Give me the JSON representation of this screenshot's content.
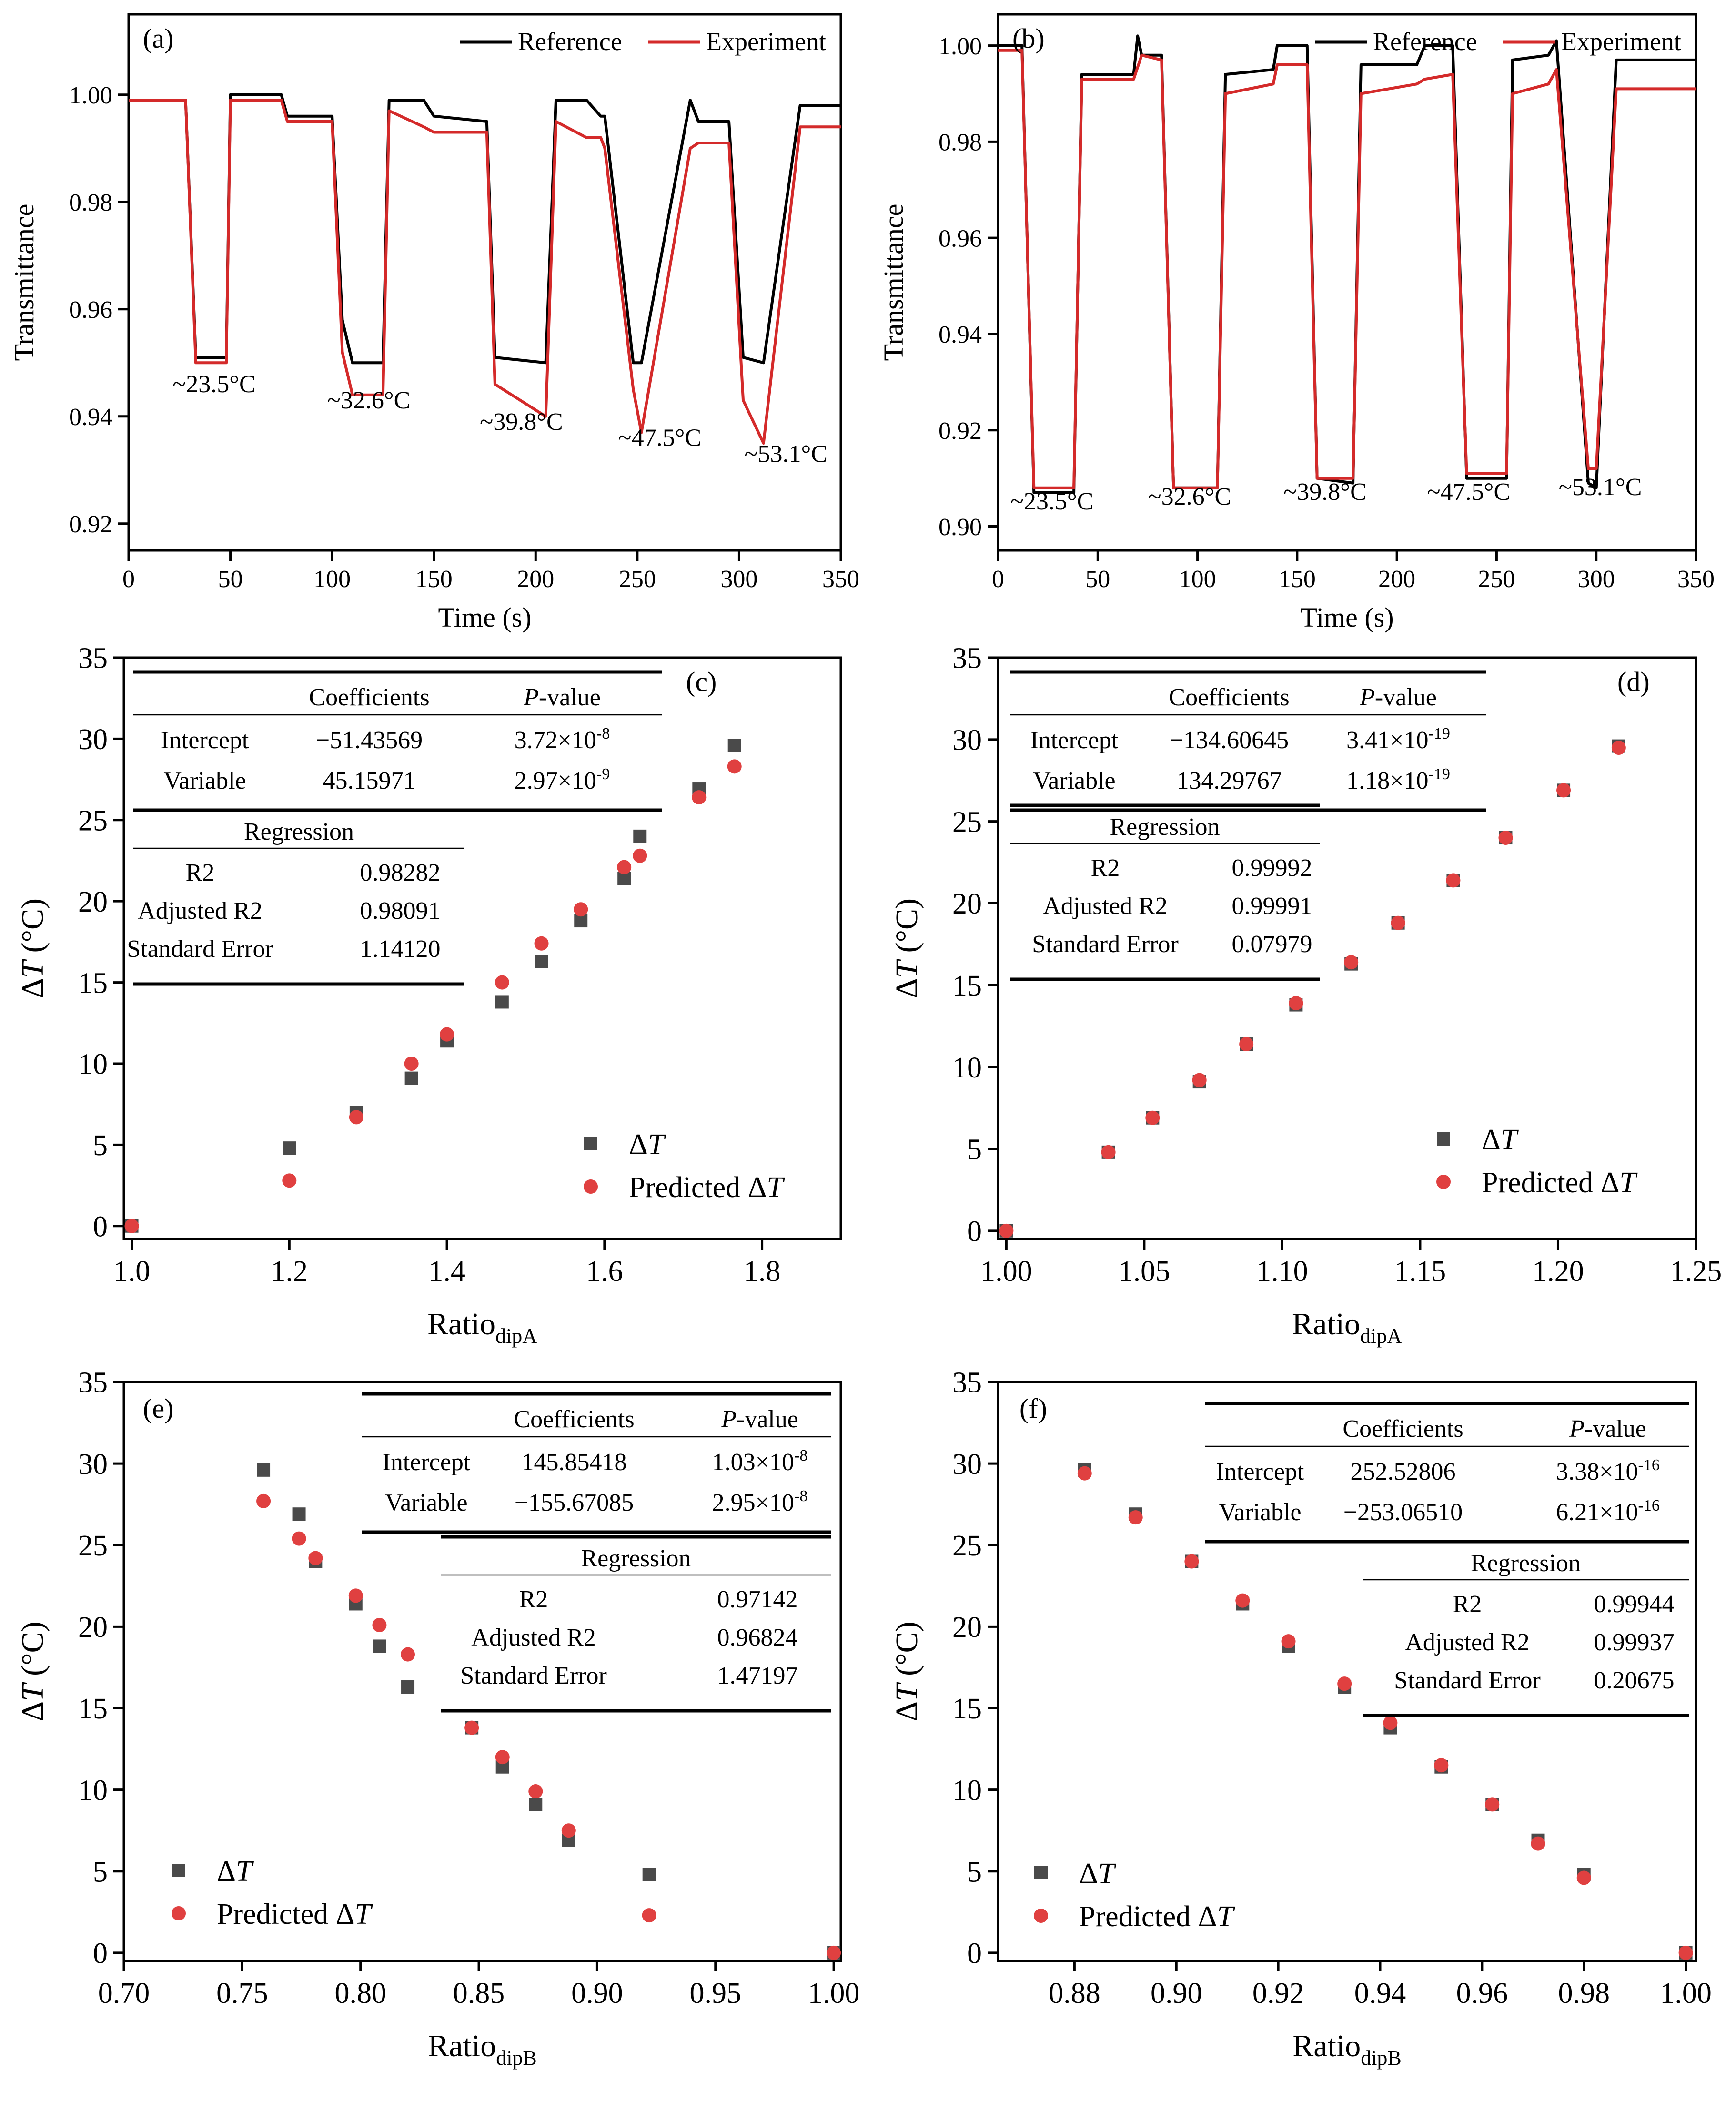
{
  "colors": {
    "reference": "#000000",
    "experiment": "#d42a2a",
    "square": "#4a4a4a",
    "circle": "#e04040"
  },
  "chart_data": [
    {
      "id": "a",
      "type": "line",
      "panel_label": "(a)",
      "xlabel": "Time (s)",
      "ylabel": "Transmittance",
      "xlim": [
        0,
        350
      ],
      "ylim": [
        0.915,
        1.015
      ],
      "xticks": [
        0,
        50,
        100,
        150,
        200,
        250,
        300,
        350
      ],
      "xtick_labels": [
        "0",
        "50",
        "100",
        "150",
        "200",
        "250",
        "300",
        "350"
      ],
      "yticks": [
        0.92,
        0.94,
        0.96,
        0.98,
        1.0
      ],
      "ytick_labels": [
        "0.92",
        "0.94",
        "0.96",
        "0.98",
        "1.00"
      ],
      "legend": [
        "Reference",
        "Experiment"
      ],
      "series": [
        {
          "name": "Reference",
          "x": [
            0,
            28,
            33,
            48,
            50,
            75,
            78,
            100,
            105,
            110,
            125,
            128,
            145,
            150,
            176,
            180,
            205,
            210,
            225,
            232,
            234,
            248,
            252,
            276,
            280,
            295,
            302,
            312,
            330,
            350
          ],
          "y": [
            0.999,
            0.999,
            0.951,
            0.951,
            1.0,
            1.0,
            0.996,
            0.996,
            0.958,
            0.95,
            0.95,
            0.999,
            0.999,
            0.996,
            0.995,
            0.951,
            0.95,
            0.999,
            0.999,
            0.996,
            0.996,
            0.95,
            0.95,
            0.999,
            0.995,
            0.995,
            0.951,
            0.95,
            0.998,
            0.998
          ]
        },
        {
          "name": "Experiment",
          "x": [
            0,
            28,
            33,
            48,
            50,
            75,
            78,
            100,
            105,
            110,
            125,
            128,
            145,
            150,
            176,
            180,
            205,
            210,
            225,
            232,
            234,
            248,
            252,
            276,
            280,
            295,
            302,
            312,
            330,
            350
          ],
          "y": [
            0.999,
            0.999,
            0.95,
            0.95,
            0.999,
            0.999,
            0.995,
            0.995,
            0.952,
            0.944,
            0.944,
            0.997,
            0.994,
            0.993,
            0.993,
            0.946,
            0.94,
            0.995,
            0.992,
            0.992,
            0.99,
            0.945,
            0.937,
            0.99,
            0.991,
            0.991,
            0.943,
            0.935,
            0.994,
            0.994
          ]
        }
      ],
      "annotations": [
        {
          "text": "~23.5°C",
          "x": 42,
          "y": 0.9445
        },
        {
          "text": "~32.6°C",
          "x": 118,
          "y": 0.9415
        },
        {
          "text": "~39.8°C",
          "x": 193,
          "y": 0.9375
        },
        {
          "text": "~47.5°C",
          "x": 261,
          "y": 0.9345
        },
        {
          "text": "~53.1°C",
          "x": 323,
          "y": 0.9315
        }
      ]
    },
    {
      "id": "b",
      "type": "line",
      "panel_label": "(b)",
      "xlabel": "Time (s)",
      "ylabel": "Transmittance",
      "xlim": [
        0,
        350
      ],
      "ylim": [
        0.895,
        1.0065
      ],
      "xticks": [
        0,
        50,
        100,
        150,
        200,
        250,
        300,
        350
      ],
      "xtick_labels": [
        "0",
        "50",
        "100",
        "150",
        "200",
        "250",
        "300",
        "350"
      ],
      "yticks": [
        0.9,
        0.92,
        0.94,
        0.96,
        0.98,
        1.0
      ],
      "ytick_labels": [
        "0.90",
        "0.92",
        "0.94",
        "0.96",
        "0.98",
        "1.00"
      ],
      "legend": [
        "Reference",
        "Experiment"
      ],
      "series": [
        {
          "name": "Reference",
          "x": [
            0,
            12,
            18,
            38,
            42,
            68,
            70,
            72,
            82,
            88,
            110,
            114,
            138,
            140,
            155,
            160,
            178,
            182,
            210,
            214,
            228,
            235,
            255,
            258,
            276,
            280,
            296,
            300,
            310,
            350
          ],
          "y": [
            1.0,
            1.0,
            0.907,
            0.907,
            0.994,
            0.994,
            1.002,
            0.998,
            0.998,
            0.908,
            0.908,
            0.994,
            0.995,
            1.0,
            1.0,
            0.91,
            0.909,
            0.996,
            0.996,
            1.0,
            1.0,
            0.91,
            0.91,
            0.997,
            0.998,
            1.001,
            0.909,
            0.908,
            0.997,
            0.997
          ]
        },
        {
          "name": "Experiment",
          "x": [
            0,
            12,
            18,
            38,
            42,
            68,
            72,
            82,
            88,
            110,
            114,
            138,
            140,
            155,
            160,
            178,
            182,
            210,
            214,
            228,
            235,
            255,
            258,
            276,
            280,
            296,
            300,
            310,
            350
          ],
          "y": [
            0.999,
            0.999,
            0.908,
            0.908,
            0.993,
            0.993,
            0.998,
            0.997,
            0.908,
            0.908,
            0.99,
            0.992,
            0.996,
            0.996,
            0.91,
            0.91,
            0.99,
            0.992,
            0.993,
            0.994,
            0.911,
            0.911,
            0.99,
            0.992,
            0.995,
            0.912,
            0.912,
            0.991,
            0.991
          ]
        }
      ],
      "annotations": [
        {
          "text": "~23.5°C",
          "x": 27,
          "y": 0.9035
        },
        {
          "text": "~32.6°C",
          "x": 96,
          "y": 0.9045
        },
        {
          "text": "~39.8°C",
          "x": 164,
          "y": 0.9055
        },
        {
          "text": "~47.5°C",
          "x": 236,
          "y": 0.9055
        },
        {
          "text": "~53.1°C",
          "x": 302,
          "y": 0.9065
        }
      ]
    },
    {
      "id": "c",
      "type": "scatter",
      "panel_label": "(c)",
      "xlabel": "Ratio",
      "xlabel_sub": "dipA",
      "ylabel": "ΔT (°C)",
      "xlim": [
        0.99,
        1.9
      ],
      "ylim": [
        -0.8,
        35
      ],
      "xticks": [
        1.0,
        1.2,
        1.4,
        1.6,
        1.8
      ],
      "xtick_labels": [
        "1.0",
        "1.2",
        "1.4",
        "1.6",
        "1.8"
      ],
      "yticks": [
        0,
        5,
        10,
        15,
        20,
        25,
        30,
        35
      ],
      "ytick_labels": [
        "0",
        "5",
        "10",
        "15",
        "20",
        "25",
        "30",
        "35"
      ],
      "legend": [
        "ΔT",
        "Predicted ΔT"
      ],
      "series": [
        {
          "name": "ΔT",
          "x": [
            1.0,
            1.2,
            1.285,
            1.355,
            1.4,
            1.47,
            1.52,
            1.57,
            1.625,
            1.645,
            1.72,
            1.765
          ],
          "y": [
            0.0,
            4.8,
            7.0,
            9.1,
            11.4,
            13.8,
            16.3,
            18.8,
            21.4,
            24.0,
            26.9,
            29.6
          ]
        },
        {
          "name": "Predicted ΔT",
          "x": [
            1.0,
            1.2,
            1.285,
            1.355,
            1.4,
            1.47,
            1.52,
            1.57,
            1.625,
            1.645,
            1.72,
            1.765
          ],
          "y": [
            0.0,
            2.8,
            6.7,
            10.0,
            11.8,
            15.0,
            17.4,
            19.5,
            22.1,
            22.8,
            26.4,
            28.3
          ]
        }
      ],
      "coef_table": {
        "headers": [
          "",
          "Coefficients",
          "P-value"
        ],
        "rows": [
          [
            "Intercept",
            "−51.43569",
            "3.72×10",
            "-8"
          ],
          [
            "Variable",
            "45.15971",
            "2.97×10",
            "-9"
          ]
        ]
      },
      "reg_table": {
        "title": "Regression",
        "rows": [
          [
            "R2",
            "0.98282"
          ],
          [
            "Adjusted R2",
            "0.98091"
          ],
          [
            "Standard Error",
            "1.14120"
          ]
        ]
      }
    },
    {
      "id": "d",
      "type": "scatter",
      "panel_label": "(d)",
      "xlabel": "Ratio",
      "xlabel_sub": "dipA",
      "ylabel": "ΔT (°C)",
      "xlim": [
        0.997,
        1.25
      ],
      "ylim": [
        -0.5,
        35
      ],
      "xticks": [
        1.0,
        1.05,
        1.1,
        1.15,
        1.2,
        1.25
      ],
      "xtick_labels": [
        "1.00",
        "1.05",
        "1.10",
        "1.15",
        "1.20",
        "1.25"
      ],
      "yticks": [
        0,
        5,
        10,
        15,
        20,
        25,
        30,
        35
      ],
      "ytick_labels": [
        "0",
        "5",
        "10",
        "15",
        "20",
        "25",
        "30",
        "35"
      ],
      "legend": [
        "ΔT",
        "Predicted ΔT"
      ],
      "series": [
        {
          "name": "ΔT",
          "x": [
            1.0,
            1.037,
            1.053,
            1.07,
            1.087,
            1.105,
            1.125,
            1.142,
            1.162,
            1.181,
            1.202,
            1.222
          ],
          "y": [
            0.0,
            4.8,
            6.9,
            9.1,
            11.4,
            13.8,
            16.3,
            18.8,
            21.4,
            24.0,
            26.9,
            29.6
          ]
        },
        {
          "name": "Predicted ΔT",
          "x": [
            1.0,
            1.037,
            1.053,
            1.07,
            1.087,
            1.105,
            1.125,
            1.142,
            1.162,
            1.181,
            1.202,
            1.222
          ],
          "y": [
            0.0,
            4.8,
            6.9,
            9.2,
            11.4,
            13.9,
            16.4,
            18.8,
            21.4,
            24.0,
            26.9,
            29.5
          ]
        }
      ],
      "coef_table": {
        "headers": [
          "",
          "Coefficients",
          "P-value"
        ],
        "rows": [
          [
            "Intercept",
            "−134.60645",
            "3.41×10",
            "-19"
          ],
          [
            "Variable",
            "134.29767",
            "1.18×10",
            "-19"
          ]
        ]
      },
      "reg_table": {
        "title": "Regression",
        "rows": [
          [
            "R2",
            "0.99992"
          ],
          [
            "Adjusted R2",
            "0.99991"
          ],
          [
            "Standard Error",
            "0.07979"
          ]
        ]
      }
    },
    {
      "id": "e",
      "type": "scatter",
      "panel_label": "(e)",
      "xlabel": "Ratio",
      "xlabel_sub": "dipB",
      "ylabel": "ΔT (°C)",
      "xlim": [
        0.7,
        1.003
      ],
      "ylim": [
        -0.5,
        35
      ],
      "xticks": [
        0.7,
        0.75,
        0.8,
        0.85,
        0.9,
        0.95,
        1.0
      ],
      "xtick_labels": [
        "0.70",
        "0.75",
        "0.80",
        "0.85",
        "0.90",
        "0.95",
        "1.00"
      ],
      "yticks": [
        0,
        5,
        10,
        15,
        20,
        25,
        30,
        35
      ],
      "ytick_labels": [
        "0",
        "5",
        "10",
        "15",
        "20",
        "25",
        "30",
        "35"
      ],
      "legend": [
        "ΔT",
        "Predicted ΔT"
      ],
      "series": [
        {
          "name": "ΔT",
          "x": [
            0.759,
            0.774,
            0.781,
            0.798,
            0.808,
            0.82,
            0.847,
            0.86,
            0.874,
            0.888,
            0.922,
            1.0
          ],
          "y": [
            29.6,
            26.9,
            24.0,
            21.4,
            18.8,
            16.3,
            13.8,
            11.4,
            9.1,
            6.9,
            4.8,
            0.0
          ]
        },
        {
          "name": "Predicted ΔT",
          "x": [
            0.759,
            0.774,
            0.781,
            0.798,
            0.808,
            0.82,
            0.847,
            0.86,
            0.874,
            0.888,
            0.922,
            1.0
          ],
          "y": [
            27.7,
            25.4,
            24.2,
            21.9,
            20.1,
            18.3,
            13.8,
            12.0,
            9.9,
            7.5,
            2.3,
            0.0
          ]
        }
      ],
      "coef_table": {
        "headers": [
          "",
          "Coefficients",
          "P-value"
        ],
        "rows": [
          [
            "Intercept",
            "145.85418",
            "1.03×10",
            "-8"
          ],
          [
            "Variable",
            "−155.67085",
            "2.95×10",
            "-8"
          ]
        ]
      },
      "reg_table": {
        "title": "Regression",
        "rows": [
          [
            "R2",
            "0.97142"
          ],
          [
            "Adjusted R2",
            "0.96824"
          ],
          [
            "Standard Error",
            "1.47197"
          ]
        ]
      }
    },
    {
      "id": "f",
      "type": "scatter",
      "panel_label": "(f)",
      "xlabel": "Ratio",
      "xlabel_sub": "dipB",
      "ylabel": "ΔT (°C)",
      "xlim": [
        0.865,
        1.002
      ],
      "ylim": [
        -0.5,
        35
      ],
      "xticks": [
        0.88,
        0.9,
        0.92,
        0.94,
        0.96,
        0.98,
        1.0
      ],
      "xtick_labels": [
        "0.88",
        "0.90",
        "0.92",
        "0.94",
        "0.96",
        "0.98",
        "1.00"
      ],
      "yticks": [
        0,
        5,
        10,
        15,
        20,
        25,
        30,
        35
      ],
      "ytick_labels": [
        "0",
        "5",
        "10",
        "15",
        "20",
        "25",
        "30",
        "35"
      ],
      "legend": [
        "ΔT",
        "Predicted ΔT"
      ],
      "series": [
        {
          "name": "ΔT",
          "x": [
            0.882,
            0.892,
            0.903,
            0.913,
            0.922,
            0.933,
            0.942,
            0.952,
            0.962,
            0.971,
            0.98,
            1.0
          ],
          "y": [
            29.6,
            26.9,
            24.0,
            21.4,
            18.8,
            16.3,
            13.8,
            11.4,
            9.1,
            6.9,
            4.8,
            0.0
          ]
        },
        {
          "name": "Predicted ΔT",
          "x": [
            0.882,
            0.892,
            0.903,
            0.913,
            0.922,
            0.933,
            0.942,
            0.952,
            0.962,
            0.971,
            0.98,
            1.0
          ],
          "y": [
            29.4,
            26.7,
            24.0,
            21.6,
            19.1,
            16.5,
            14.1,
            11.5,
            9.1,
            6.7,
            4.6,
            0.0
          ]
        }
      ],
      "coef_table": {
        "headers": [
          "",
          "Coefficients",
          "P-value"
        ],
        "rows": [
          [
            "Intercept",
            "252.52806",
            "3.38×10",
            "-16"
          ],
          [
            "Variable",
            "−253.06510",
            "6.21×10",
            "-16"
          ]
        ]
      },
      "reg_table": {
        "title": "Regression",
        "rows": [
          [
            "R2",
            "0.99944"
          ],
          [
            "Adjusted R2",
            "0.99937"
          ],
          [
            "Standard Error",
            "0.20675"
          ]
        ]
      }
    }
  ]
}
